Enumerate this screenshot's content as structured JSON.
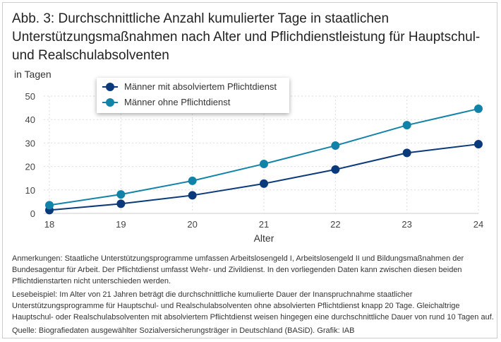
{
  "title": "Abb. 3: Durchschnittliche Anzahl kumulierter Tage in staatlichen Unterstützungsmaßnahmen nach Alter und Pflichdienstleistung für Hauptschul- und Realschulabsolventen",
  "notes": [
    "Anmerkungen: Staatliche Unterstützungsprogramme umfassen Arbeitslosengeld I, Arbeitslosengeld II und Bildungsmaßnahmen der Bundesagentur für Arbeit. Der Pflichtdienst umfasst Wehr- und Zivildienst. In den vorliegenden Daten kann zwischen diesen beiden Pflichtdienstarten nicht unterschieden werden.",
    "Lesebeispiel: Im Alter von 21 Jahren beträgt die durchschnittliche kumulierte Dauer der Inanspruchnahme staatlicher Unterstützungsprogramme für Hauptschul- und Realschulabsolventen ohne absolvierten Pflichtdienst knapp 20 Tage. Gleichaltrige Hauptschul- oder Realschulabsolventen mit absolviertem Pflichtdienst weisen hingegen eine durchschnittliche Dauer von rund 10 Tagen auf.",
    "Quelle: Biografiedaten ausgewählter Sozialversicherungsträger in Deutschland (BASiD). Grafik: IAB"
  ],
  "chart_data": {
    "type": "line",
    "ylabel": "in Tagen",
    "xlabel": "Alter",
    "x": [
      18,
      19,
      20,
      21,
      22,
      23,
      24
    ],
    "xlim": [
      18,
      24
    ],
    "ylim": [
      0,
      50
    ],
    "yticks": [
      0,
      10,
      20,
      30,
      40,
      50
    ],
    "grid": true,
    "legend": "top-left",
    "series": [
      {
        "name": "Männer mit absolviertem Pflichtdienst",
        "color": "#0b3a7a",
        "values": [
          1.4,
          4.1,
          7.7,
          12.7,
          18.7,
          25.8,
          29.5
        ]
      },
      {
        "name": "Männer ohne Pflichtdienst",
        "color": "#1283a8",
        "values": [
          3.5,
          8.1,
          13.9,
          21.1,
          28.9,
          37.6,
          44.6
        ]
      }
    ]
  }
}
